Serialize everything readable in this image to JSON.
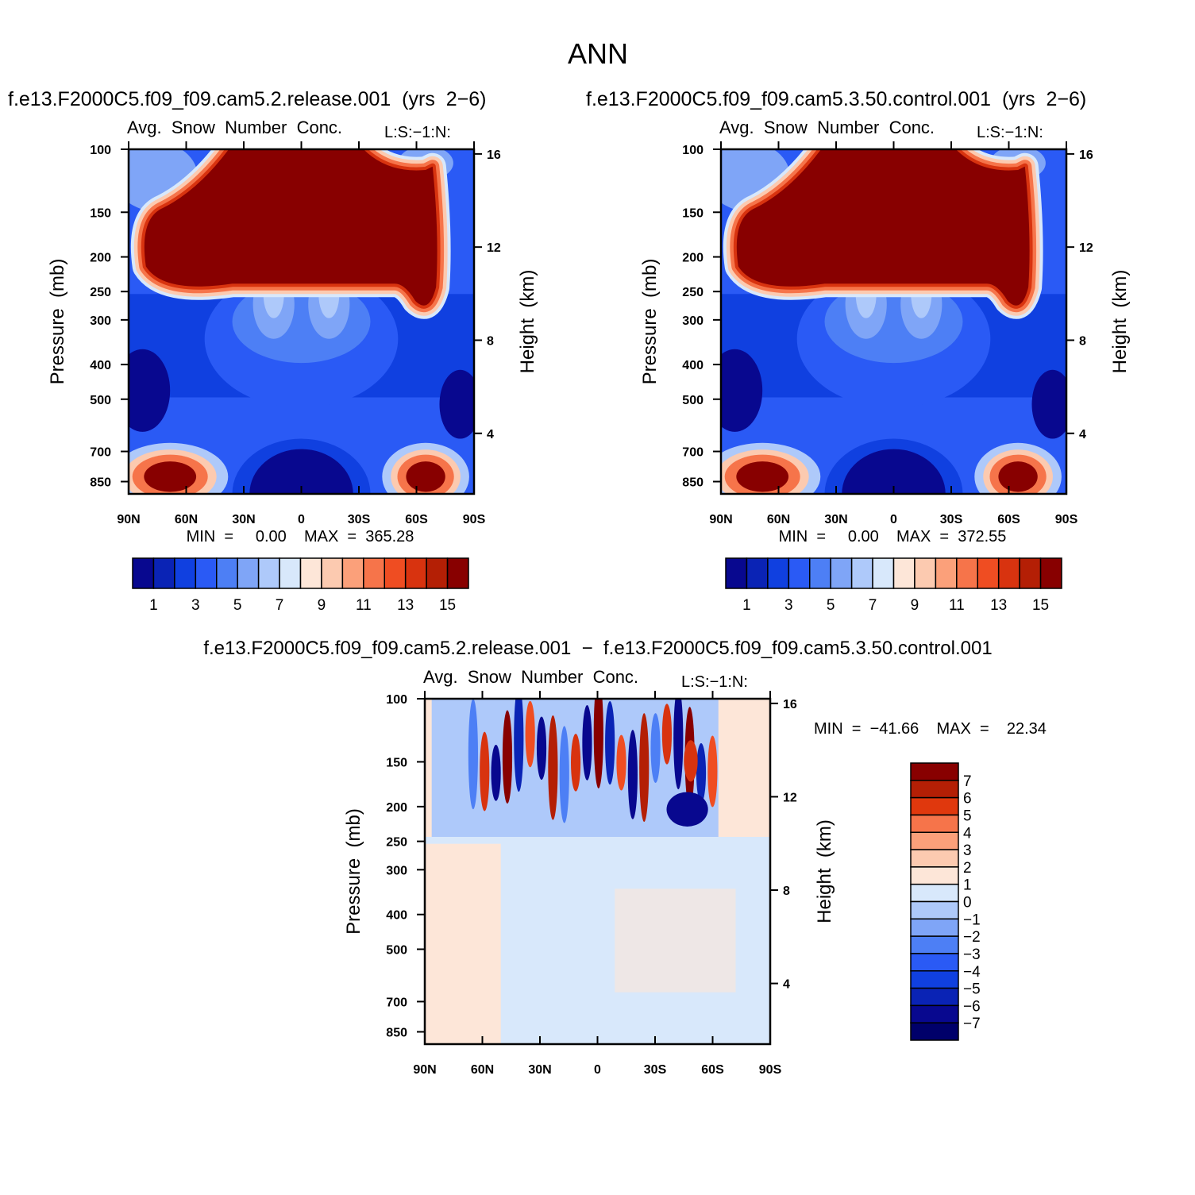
{
  "title": "ANN",
  "diff_title": "f.e13.F2000C5.f09_f09.cam5.2.release.001  −  f.e13.F2000C5.f09_f09.cam5.3.50.control.001",
  "chart_data": [
    {
      "type": "contour",
      "title": "f.e13.F2000C5.f09_f09.cam5.2.release.001  (yrs  2−6)",
      "subtitle": "Avg.  Snow  Number  Conc.",
      "side_label": "L:S:−1:N:",
      "stats": "MIN  =     0.00    MAX  =  365.28",
      "ylabel": "Pressure  (mb)",
      "y2label": "Height  (km)",
      "xlim": [
        90,
        -90
      ],
      "xticks": [
        {
          "value": 90,
          "label": "90N"
        },
        {
          "value": 60,
          "label": "60N"
        },
        {
          "value": 30,
          "label": "30N"
        },
        0,
        {
          "value": -30,
          "label": "30S"
        },
        {
          "value": -60,
          "label": "60S"
        },
        {
          "value": -90,
          "label": "90S"
        }
      ],
      "ylim": [
        920,
        100
      ],
      "ylog": true,
      "yticks": [
        100,
        150,
        200,
        250,
        300,
        400,
        500,
        700,
        850
      ],
      "y2lim": [
        1.4,
        16.2
      ],
      "y2ticks": [
        4,
        8,
        12,
        16
      ],
      "colorbar": {
        "orientation": "horizontal",
        "lim": [
          0,
          16
        ],
        "ticks": [
          1,
          3,
          5,
          7,
          9,
          11,
          13,
          15
        ],
        "colors": [
          "#08088f",
          "#0a23b5",
          "#1040e0",
          "#2a5af5",
          "#4d7ff5",
          "#7fa5f7",
          "#aec9fa",
          "#d8e8fb",
          "#fde6d8",
          "#fccab0",
          "#fba07a",
          "#f6744a",
          "#ef4d22",
          "#d8330f",
          "#b41f05",
          "#880000"
        ]
      }
    },
    {
      "type": "contour",
      "title": "f.e13.F2000C5.f09_f09.cam5.3.50.control.001  (yrs  2−6)",
      "subtitle": "Avg.  Snow  Number  Conc.",
      "side_label": "L:S:−1:N:",
      "stats": "MIN  =     0.00    MAX  =  372.55",
      "ylabel": "Pressure  (mb)",
      "y2label": "Height  (km)",
      "xlim": [
        90,
        -90
      ],
      "xticks": [
        {
          "value": 90,
          "label": "90N"
        },
        {
          "value": 60,
          "label": "60N"
        },
        {
          "value": 30,
          "label": "30N"
        },
        0,
        {
          "value": -30,
          "label": "30S"
        },
        {
          "value": -60,
          "label": "60S"
        },
        {
          "value": -90,
          "label": "90S"
        }
      ],
      "ylim": [
        920,
        100
      ],
      "ylog": true,
      "yticks": [
        100,
        150,
        200,
        250,
        300,
        400,
        500,
        700,
        850
      ],
      "y2lim": [
        1.4,
        16.2
      ],
      "y2ticks": [
        4,
        8,
        12,
        16
      ],
      "colorbar": {
        "orientation": "horizontal",
        "lim": [
          0,
          16
        ],
        "ticks": [
          1,
          3,
          5,
          7,
          9,
          11,
          13,
          15
        ],
        "colors": [
          "#08088f",
          "#0a23b5",
          "#1040e0",
          "#2a5af5",
          "#4d7ff5",
          "#7fa5f7",
          "#aec9fa",
          "#d8e8fb",
          "#fde6d8",
          "#fccab0",
          "#fba07a",
          "#f6744a",
          "#ef4d22",
          "#d8330f",
          "#b41f05",
          "#880000"
        ]
      }
    },
    {
      "type": "contour-diff",
      "subtitle": "Avg.  Snow  Number  Conc.",
      "side_label": "L:S:−1:N:",
      "stats": "MIN  =  −41.66    MAX  =    22.34",
      "ylabel": "Pressure  (mb)",
      "y2label": "Height  (km)",
      "xlim": [
        90,
        -90
      ],
      "xticks": [
        {
          "value": 90,
          "label": "90N"
        },
        {
          "value": 60,
          "label": "60N"
        },
        {
          "value": 30,
          "label": "30N"
        },
        0,
        {
          "value": -30,
          "label": "30S"
        },
        {
          "value": -60,
          "label": "60S"
        },
        {
          "value": -90,
          "label": "90S"
        }
      ],
      "ylim": [
        920,
        100
      ],
      "ylog": true,
      "yticks": [
        100,
        150,
        200,
        250,
        300,
        400,
        500,
        700,
        850
      ],
      "y2lim": [
        1.4,
        16.2
      ],
      "y2ticks": [
        4,
        8,
        12,
        16
      ],
      "colorbar": {
        "orientation": "vertical",
        "lim": [
          8,
          -8
        ],
        "ticks": [
          7,
          6,
          5,
          4,
          3,
          2,
          1,
          0,
          {
            "value": -1,
            "label": "−1"
          },
          {
            "value": -2,
            "label": "−2"
          },
          {
            "value": -3,
            "label": "−3"
          },
          {
            "value": -4,
            "label": "−4"
          },
          {
            "value": -5,
            "label": "−5"
          },
          {
            "value": -6,
            "label": "−6"
          },
          {
            "value": -7,
            "label": "−7"
          }
        ],
        "colors": [
          "#880000",
          "#b41f05",
          "#e0380d",
          "#f6744a",
          "#fba07a",
          "#fccab0",
          "#fde6d8",
          "#d8e8fb",
          "#aec9fa",
          "#7fa5f7",
          "#4d7ff5",
          "#2a5af5",
          "#1040e0",
          "#0a23b5",
          "#08088f",
          "#00006a"
        ]
      }
    }
  ]
}
